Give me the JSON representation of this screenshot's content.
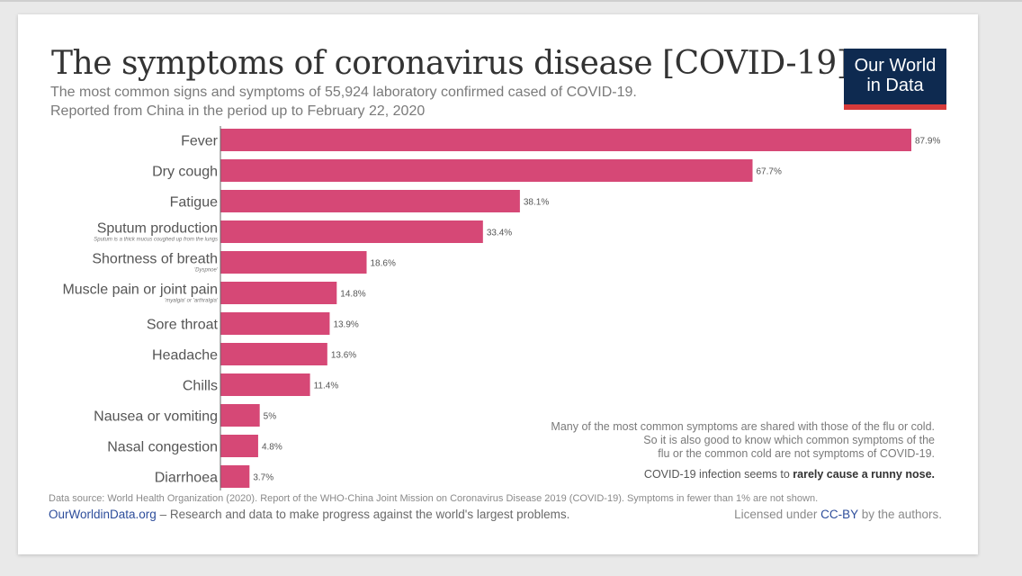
{
  "header": {
    "title": "The symptoms of coronavirus disease [COVID-19]",
    "subtitle_line1": "The most common signs and symptoms of 55,924 laboratory confirmed cased of COVID-19.",
    "subtitle_line2": "Reported from China in the period up to February 22, 2020",
    "logo_line1": "Our World",
    "logo_line2": "in Data"
  },
  "colors": {
    "bar": "#d64876",
    "logo_bg": "#0e2a50",
    "logo_accent": "#d63a3a",
    "link": "#2d4d9b"
  },
  "chart_data": {
    "type": "bar",
    "orientation": "horizontal",
    "title": "The symptoms of coronavirus disease [COVID-19]",
    "categories": [
      "Fever",
      "Dry cough",
      "Fatigue",
      "Sputum production",
      "Shortness of breath",
      "Muscle pain or joint pain",
      "Sore throat",
      "Headache",
      "Chills",
      "Nausea or vomiting",
      "Nasal congestion",
      "Diarrhoea"
    ],
    "category_notes": [
      "",
      "",
      "",
      "Sputum is a thick mucus coughed up from the lungs",
      "'Dyspnoe'",
      "'myalgia' or 'arthralgia'",
      "",
      "",
      "",
      "",
      "",
      ""
    ],
    "values": [
      87.9,
      67.7,
      38.1,
      33.4,
      18.6,
      14.8,
      13.9,
      13.6,
      11.4,
      5,
      4.8,
      3.7
    ],
    "value_labels": [
      "87.9%",
      "67.7%",
      "38.1%",
      "33.4%",
      "18.6%",
      "14.8%",
      "13.9%",
      "13.6%",
      "11.4%",
      "5%",
      "4.8%",
      "3.7%"
    ],
    "xlim": [
      0,
      87.9
    ],
    "grid": false,
    "legend": "none"
  },
  "note": {
    "line1": "Many of the most common symptoms are shared with those of the flu or cold.",
    "line2": "So it is also good to know which common symptoms of the",
    "line3": "flu or the common cold are not symptoms of COVID-19.",
    "line4_prefix": "COVID-19 infection seems to ",
    "line4_emph": "rarely cause a runny nose."
  },
  "footer": {
    "source": "Data source: World Health Organization (2020). Report of the WHO-China Joint Mission on Coronavirus Disease 2019 (COVID-19). Symptoms in fewer than 1% are not shown.",
    "site": "OurWorldinData.org",
    "tagline": " – Research and data to make progress against the world's largest problems.",
    "license_prefix": "Licensed under ",
    "license": "CC-BY",
    "license_suffix": " by the authors."
  }
}
